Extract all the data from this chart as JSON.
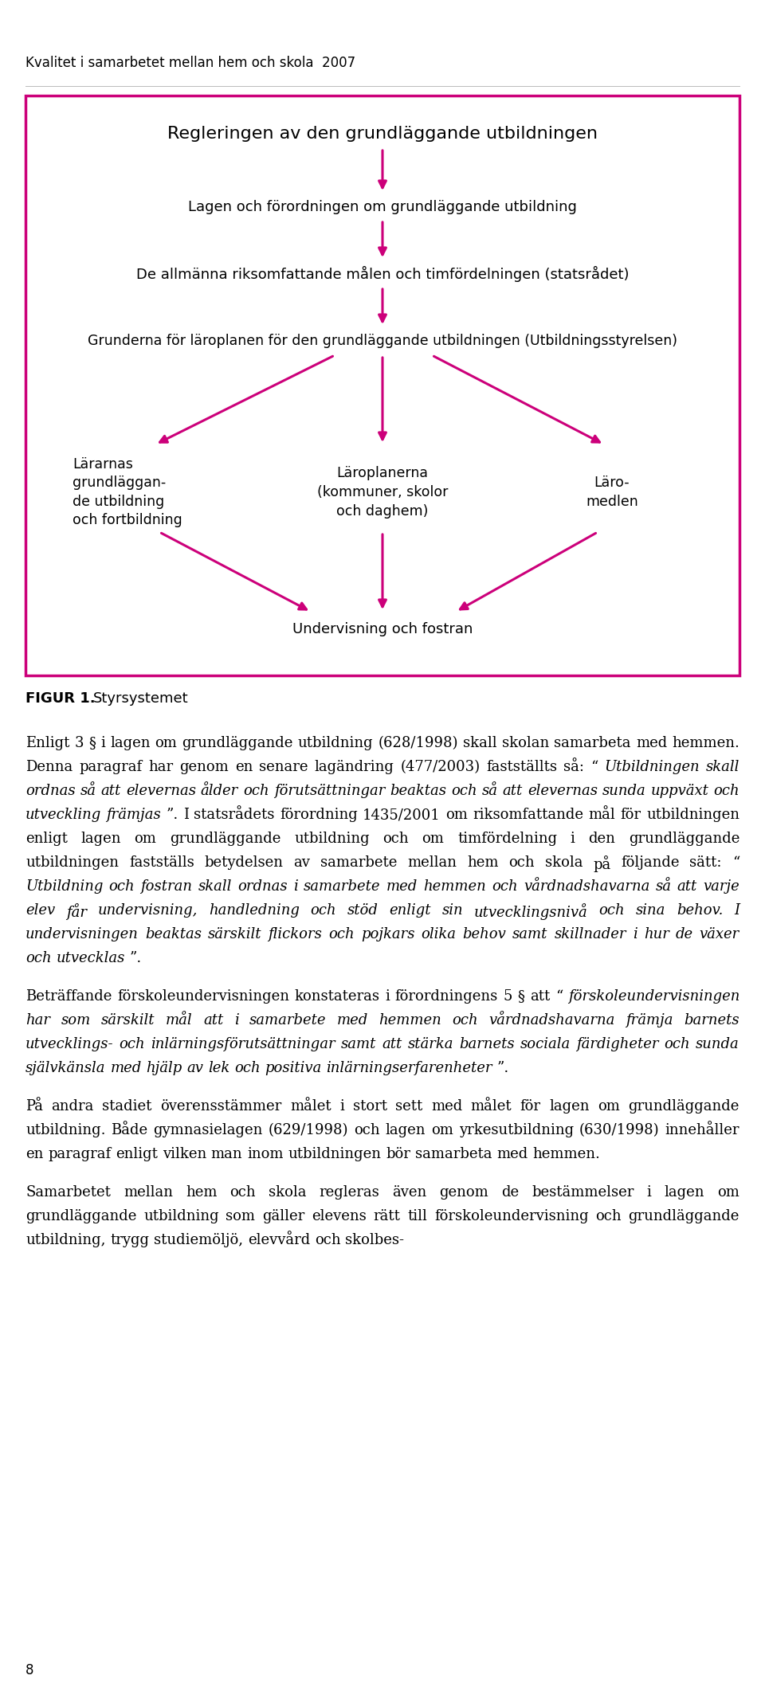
{
  "header_text": "Kvalitet i samarbetet mellan hem och skola  2007",
  "box_color": "#CC007A",
  "arrow_color": "#CC007A",
  "text_color": "#000000",
  "background_color": "#FFFFFF",
  "diagram": {
    "node1": "Regleringen av den grundläggande utbildningen",
    "node2": "Lagen och förordningen om grundläggande utbildning",
    "node3": "De allmänna riksomfattande målen och timfördelningen (statsrådet)",
    "node4": "Grunderna för läroplanen för den grundläggande utbildningen (Utbildningsstyrelsen)",
    "node5_left": "Lärarnas\ngrundläggan-\nde utbildning\noch fortbildning",
    "node5_center": "Läroplanerna\n(kommuner, skolor\noch daghem)",
    "node5_right": "Läro-\nmedlen",
    "node6": "Undervisning och fostran"
  },
  "figure_label": "FIGUR 1.",
  "figure_title": "Styrsystemet",
  "paragraph1_parts": [
    {
      "text": "Enligt 3 § i lagen om grundläggande utbildning (628/1998) skall skolan samarbeta med hemmen. Denna paragraf har genom en senare lagändring (477/2003) fastställts så: “",
      "italic": false
    },
    {
      "text": "Utbildningen skall ordnas så att elevernas ålder och förutsättningar beaktas och så att elevernas sunda uppväxt och utveckling främjas",
      "italic": true
    },
    {
      "text": "”. I statsrådets förordning 1435/2001 om riksomfattande mål för utbildningen enligt lagen om grundläggande utbildning och om timfördelning i den grundläggande utbildningen fastställs betydelsen av samarbete mellan hem och skola på följande sätt: “",
      "italic": false
    },
    {
      "text": "Utbildning och fostran skall ordnas i samarbete med hemmen och vårdnadshavarna så att varje elev får undervisning, handledning och stöd enligt sin utvecklingsnivå och sina behov. I undervisningen beaktas särskilt flickors och pojkars olika behov samt skillnader i hur de växer och utvecklas",
      "italic": true
    },
    {
      "text": "”.",
      "italic": false
    }
  ],
  "paragraph2_parts": [
    {
      "text": "Beträffande förskoleundervisningen konstateras i förordningens 5 § att “",
      "italic": false
    },
    {
      "text": "förskoleundervisningen har som särskilt mål att i samarbete med hemmen och vårdnadshavarna främja barnets utvecklings- och inlärningsförutsättningar samt att stärka barnets sociala färdigheter och sunda självkänsla med hjälp av lek och positiva inlärningserfarenheter",
      "italic": true
    },
    {
      "text": "”.",
      "italic": false
    }
  ],
  "paragraph3_parts": [
    {
      "text": "På andra stadiet överensstämmer målet i stort sett med målet för lagen om grundläggande utbildning. Både gymnasielagen (629/1998) och lagen om yrkesutbildning (630/1998) innehåller en paragraf enligt vilken man inom utbildningen bör samarbeta med hemmen.",
      "italic": false
    }
  ],
  "paragraph4_parts": [
    {
      "text": "Samarbetet mellan hem och skola regleras även genom de bestämmelser i lagen om grundläggande utbildning som gäller elevens rätt till förskoleundervisning och grundläggande utbildning, trygg studiemöljö, elevvård och skolbes-",
      "italic": false
    }
  ],
  "page_number": "8"
}
